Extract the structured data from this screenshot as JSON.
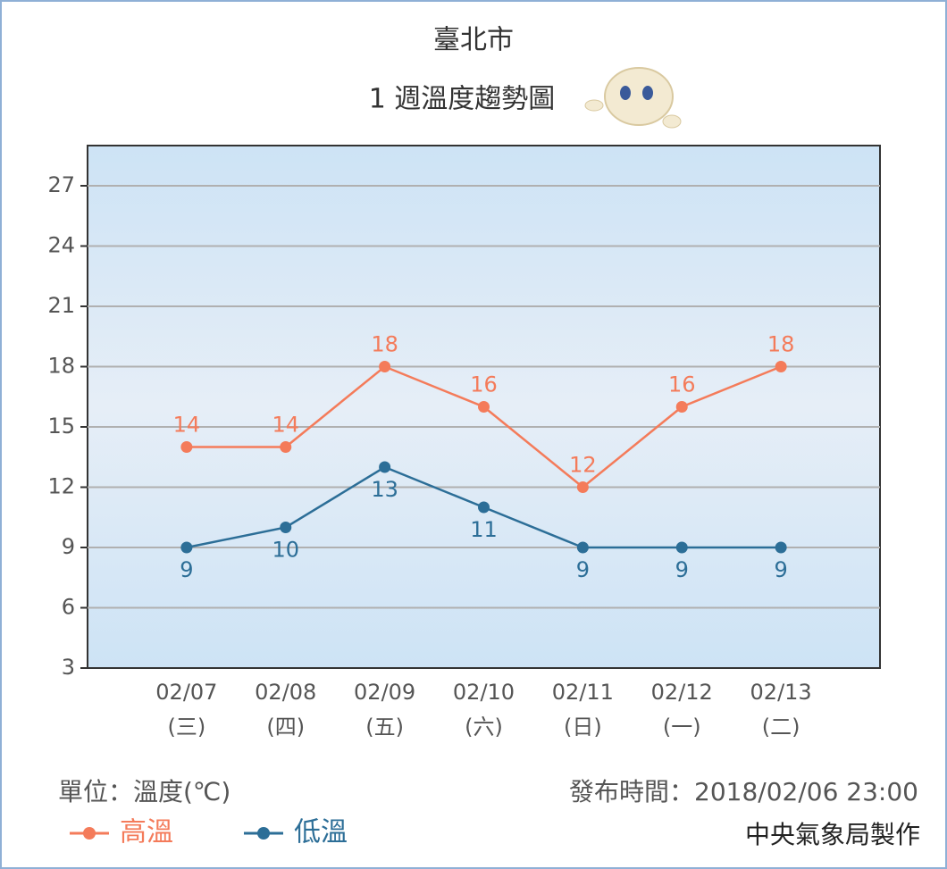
{
  "chart_data": {
    "type": "line",
    "title": "臺北市",
    "subtitle": "1 週溫度趨勢圖",
    "categories": [
      "02/07",
      "02/08",
      "02/09",
      "02/10",
      "02/11",
      "02/12",
      "02/13"
    ],
    "category_sublabels": [
      "(三)",
      "(四)",
      "(五)",
      "(六)",
      "(日)",
      "(一)",
      "(二)"
    ],
    "series": [
      {
        "name": "高溫",
        "color": "#f47b5a",
        "values": [
          14,
          14,
          18,
          16,
          12,
          16,
          18
        ]
      },
      {
        "name": "低溫",
        "color": "#2c6e97",
        "values": [
          9,
          10,
          13,
          11,
          9,
          9,
          9
        ]
      }
    ],
    "ylim": [
      3,
      29
    ],
    "yticks": [
      3,
      6,
      9,
      12,
      15,
      18,
      21,
      24,
      27
    ],
    "grid": true,
    "unit_note": "單位：溫度(℃)",
    "published": "發布時間：2018/02/06 23:00",
    "credit": "中央氣象局製作"
  }
}
